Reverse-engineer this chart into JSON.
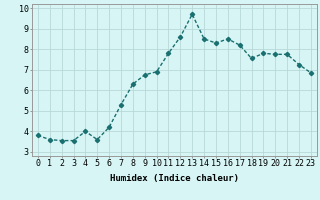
{
  "x": [
    0,
    1,
    2,
    3,
    4,
    5,
    6,
    7,
    8,
    9,
    10,
    11,
    12,
    13,
    14,
    15,
    16,
    17,
    18,
    19,
    20,
    21,
    22,
    23
  ],
  "y": [
    3.8,
    3.6,
    3.55,
    3.55,
    4.0,
    3.6,
    4.2,
    5.3,
    6.3,
    6.75,
    6.9,
    7.8,
    8.6,
    9.7,
    8.5,
    8.3,
    8.5,
    8.2,
    7.55,
    7.8,
    7.75,
    7.75,
    7.25,
    6.85
  ],
  "line_color": "#1a7070",
  "marker": "D",
  "marker_size": 2.2,
  "bg_color": "#d8f5f5",
  "grid_color": "#b8d8d8",
  "xlabel": "Humidex (Indice chaleur)",
  "xlim": [
    -0.5,
    23.5
  ],
  "ylim": [
    2.8,
    10.2
  ],
  "yticks": [
    3,
    4,
    5,
    6,
    7,
    8,
    9,
    10
  ],
  "xticks": [
    0,
    1,
    2,
    3,
    4,
    5,
    6,
    7,
    8,
    9,
    10,
    11,
    12,
    13,
    14,
    15,
    16,
    17,
    18,
    19,
    20,
    21,
    22,
    23
  ],
  "xlabel_fontsize": 6.5,
  "tick_fontsize": 6.0,
  "line_width": 1.0
}
